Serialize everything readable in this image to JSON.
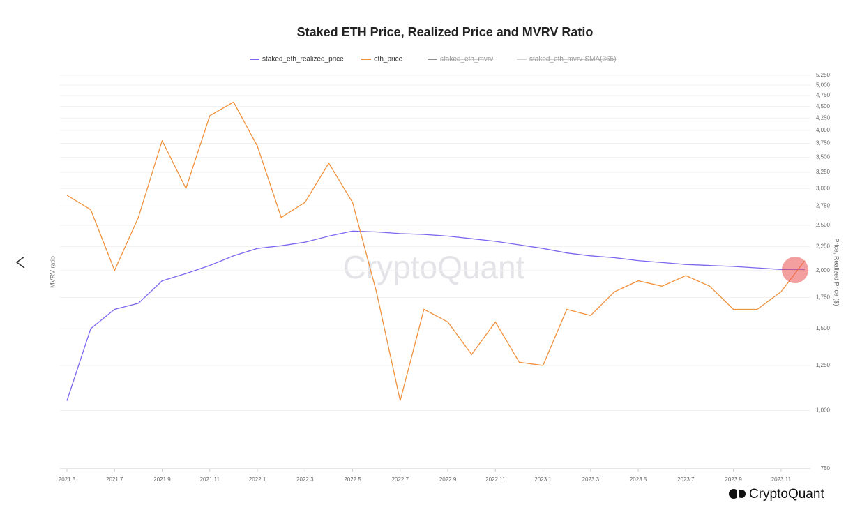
{
  "chart_data": {
    "type": "line",
    "title": "Staked ETH Price, Realized Price and MVRV Ratio",
    "y_label": "Price, Realized Price ($)",
    "y2_label": "MVRV ratio",
    "watermark": "CryptoQuant",
    "brand": "CryptoQuant",
    "log_scale": true,
    "grid": true,
    "x": [
      "2021-05",
      "2021-06",
      "2021-07",
      "2021-08",
      "2021-09",
      "2021-10",
      "2021-11",
      "2021-12",
      "2022-01",
      "2022-02",
      "2022-03",
      "2022-04",
      "2022-05",
      "2022-06",
      "2022-07",
      "2022-08",
      "2022-09",
      "2022-10",
      "2022-11",
      "2022-12",
      "2023-01",
      "2023-02",
      "2023-03",
      "2023-04",
      "2023-05",
      "2023-06",
      "2023-07",
      "2023-08",
      "2023-09",
      "2023-10",
      "2023-11",
      "2023-12"
    ],
    "xlim": [
      "2021-05",
      "2023-12"
    ],
    "xticks": [
      {
        "value": "2021-05",
        "label": "2021 5"
      },
      {
        "value": "2021-07",
        "label": "2021 7"
      },
      {
        "value": "2021-09",
        "label": "2021 9"
      },
      {
        "value": "2021-11",
        "label": "2021 11"
      },
      {
        "value": "2022-01",
        "label": "2022 1"
      },
      {
        "value": "2022-03",
        "label": "2022 3"
      },
      {
        "value": "2022-05",
        "label": "2022 5"
      },
      {
        "value": "2022-07",
        "label": "2022 7"
      },
      {
        "value": "2022-09",
        "label": "2022 9"
      },
      {
        "value": "2022-11",
        "label": "2022 11"
      },
      {
        "value": "2023-01",
        "label": "2023 1"
      },
      {
        "value": "2023-03",
        "label": "2023 3"
      },
      {
        "value": "2023-05",
        "label": "2023 5"
      },
      {
        "value": "2023-07",
        "label": "2023 7"
      },
      {
        "value": "2023-09",
        "label": "2023 9"
      },
      {
        "value": "2023-11",
        "label": "2023 11"
      }
    ],
    "ylim": [
      750,
      5250
    ],
    "yticks": [
      750,
      {
        "value": 1000,
        "label": "1,000"
      },
      {
        "value": 1250,
        "label": "1,250"
      },
      {
        "value": 1500,
        "label": "1,500"
      },
      {
        "value": 1750,
        "label": "1,750"
      },
      {
        "value": 2000,
        "label": "2,000"
      },
      {
        "value": 2250,
        "label": "2,250"
      },
      {
        "value": 2500,
        "label": "2,500"
      },
      {
        "value": 2750,
        "label": "2,750"
      },
      {
        "value": 3000,
        "label": "3,000"
      },
      {
        "value": 3250,
        "label": "3,250"
      },
      {
        "value": 3500,
        "label": "3,500"
      },
      {
        "value": 3750,
        "label": "3,750"
      },
      {
        "value": 4000,
        "label": "4,000"
      },
      {
        "value": 4250,
        "label": "4,250"
      },
      {
        "value": 4500,
        "label": "4,500"
      },
      {
        "value": 4750,
        "label": "4,750"
      },
      {
        "value": 5000,
        "label": "5,000"
      },
      {
        "value": 5250,
        "label": "5,250"
      }
    ],
    "series": [
      {
        "name": "staked_eth_realized_price",
        "color": "#7b68ee",
        "values": [
          1050,
          1500,
          1650,
          1700,
          1900,
          1970,
          2050,
          2150,
          2230,
          2260,
          2300,
          2370,
          2430,
          2420,
          2400,
          2390,
          2370,
          2340,
          2310,
          2270,
          2230,
          2180,
          2150,
          2130,
          2100,
          2080,
          2060,
          2050,
          2040,
          2025,
          2010,
          2010
        ]
      },
      {
        "name": "eth_price",
        "color": "#f0913d",
        "values": [
          2900,
          2700,
          2000,
          2600,
          3800,
          3000,
          4300,
          4600,
          3700,
          2600,
          2800,
          3400,
          2800,
          1800,
          1050,
          1650,
          1550,
          1320,
          1550,
          1270,
          1250,
          1650,
          1600,
          1800,
          1900,
          1850,
          1950,
          1850,
          1650,
          1650,
          1800,
          2100
        ]
      }
    ],
    "hidden_series": [
      {
        "name": "staked_eth_mvrv",
        "color": "#444444"
      },
      {
        "name": "staked_eth_mvrv-SMA(365)",
        "color": "#bbbbbb"
      }
    ]
  }
}
